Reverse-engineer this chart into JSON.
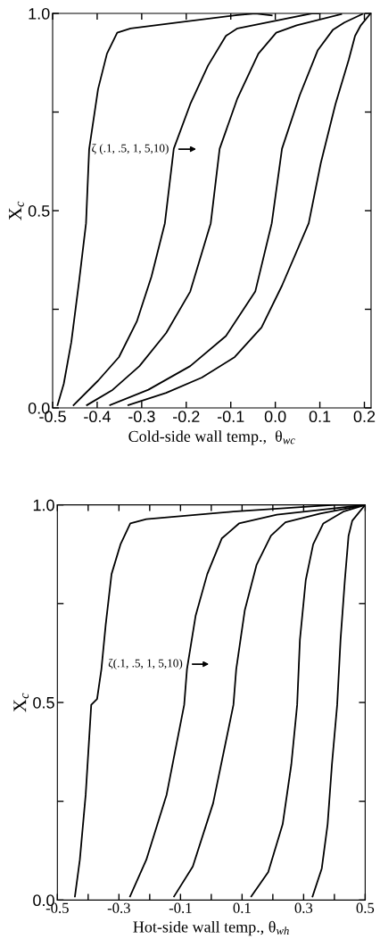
{
  "chart_data": [
    {
      "type": "line",
      "xlabel": "Cold-side wall temp.,  θ$_{wc}$",
      "ylabel": "X$_{c}$",
      "annotations": [
        "ζ (.1, .5, 1, 5,10)"
      ],
      "xlim": [
        -0.5,
        0.215
      ],
      "ylim": [
        0,
        1
      ],
      "xticks": [
        -0.5,
        -0.4,
        -0.3,
        -0.2,
        -0.1,
        {
          "value": 0.0,
          "label": "0.0"
        },
        0.1,
        0.2
      ],
      "yticks": [
        {
          "value": 0.0,
          "label": "0.0"
        },
        {
          "value": 0.25,
          "label": null
        },
        0.5,
        {
          "value": 0.75,
          "label": null
        },
        {
          "value": 1.0,
          "label": "1.0"
        }
      ],
      "grid": false,
      "marker": "none",
      "line_style": "solid",
      "series": [
        {
          "color": "#000000",
          "x": [
            -0.489,
            -0.475,
            -0.458,
            -0.441,
            -0.425,
            -0.418,
            -0.398,
            -0.378,
            -0.355,
            -0.325,
            -0.218,
            -0.085,
            -0.045,
            -0.008
          ],
          "values": [
            0.007,
            0.061,
            0.167,
            0.317,
            0.468,
            0.656,
            0.808,
            0.898,
            0.951,
            0.962,
            0.977,
            0.996,
            1.0,
            0.995
          ]
        },
        {
          "color": "#000000",
          "x": [
            -0.453,
            -0.398,
            -0.351,
            -0.311,
            -0.278,
            -0.248,
            -0.228,
            -0.191,
            -0.151,
            -0.111,
            -0.085,
            -0.018,
            0.082,
            0.1
          ],
          "values": [
            0.007,
            0.069,
            0.129,
            0.219,
            0.333,
            0.468,
            0.657,
            0.77,
            0.868,
            0.943,
            0.962,
            0.977,
            1.0,
            1.0
          ]
        },
        {
          "color": "#000000",
          "x": [
            -0.423,
            -0.365,
            -0.305,
            -0.245,
            -0.191,
            -0.145,
            -0.125,
            -0.085,
            -0.038,
            0.002,
            0.048,
            0.148
          ],
          "values": [
            0.007,
            0.046,
            0.106,
            0.19,
            0.295,
            0.468,
            0.657,
            0.785,
            0.898,
            0.951,
            0.97,
            0.998
          ]
        },
        {
          "color": "#000000",
          "x": [
            -0.371,
            -0.285,
            -0.191,
            -0.111,
            -0.045,
            -0.008,
            0.015,
            0.055,
            0.095,
            0.129,
            0.155,
            0.195
          ],
          "values": [
            0.007,
            0.046,
            0.106,
            0.182,
            0.295,
            0.468,
            0.657,
            0.793,
            0.906,
            0.958,
            0.977,
            0.998
          ]
        },
        {
          "color": "#000000",
          "x": [
            -0.33,
            -0.245,
            -0.165,
            -0.091,
            -0.031,
            0.015,
            0.075,
            0.102,
            0.135,
            0.165,
            0.179,
            0.192,
            0.214
          ],
          "values": [
            0.007,
            0.038,
            0.077,
            0.129,
            0.204,
            0.31,
            0.468,
            0.62,
            0.77,
            0.883,
            0.943,
            0.97,
            1.0
          ]
        }
      ]
    },
    {
      "type": "line",
      "xlabel": "Hot-side wall temp., θ$_{wh}$",
      "ylabel": "X$_{c}$",
      "annotations": [
        "ζ(.1, .5, 1, 5,10)"
      ],
      "xlim": [
        -0.5,
        0.5
      ],
      "ylim": [
        0,
        1
      ],
      "xticks": [
        -0.5,
        {
          "value": -0.4,
          "label": null
        },
        -0.3,
        {
          "value": -0.2,
          "label": null
        },
        -0.1,
        {
          "value": 0.0,
          "label": null
        },
        0.1,
        {
          "value": 0.2,
          "label": null
        },
        0.3,
        {
          "value": 0.4,
          "label": null
        },
        0.5
      ],
      "yticks": [
        {
          "value": 0.0,
          "label": "0.0"
        },
        {
          "value": 0.25,
          "label": null
        },
        0.5,
        {
          "value": 0.75,
          "label": null
        },
        {
          "value": 1.0,
          "label": "1.0"
        }
      ],
      "grid": false,
      "marker": "none",
      "line_style": "solid",
      "series": [
        {
          "color": "#000000",
          "x": [
            -0.443,
            -0.427,
            -0.408,
            -0.39,
            -0.371,
            -0.357,
            -0.343,
            -0.324,
            -0.295,
            -0.263,
            -0.211,
            0.072,
            0.401,
            0.5
          ],
          "values": [
            0.009,
            0.102,
            0.267,
            0.494,
            0.509,
            0.584,
            0.697,
            0.825,
            0.9,
            0.953,
            0.964,
            0.983,
            1.0,
            1.0
          ]
        },
        {
          "color": "#000000",
          "x": [
            -0.264,
            -0.211,
            -0.145,
            -0.088,
            -0.079,
            -0.051,
            -0.013,
            0.034,
            0.09,
            0.213,
            0.5
          ],
          "values": [
            0.009,
            0.102,
            0.267,
            0.494,
            0.584,
            0.719,
            0.825,
            0.915,
            0.953,
            0.975,
            1.0
          ]
        },
        {
          "color": "#000000",
          "x": [
            -0.121,
            -0.06,
            0.006,
            0.072,
            0.081,
            0.109,
            0.147,
            0.194,
            0.241,
            0.354,
            0.5
          ],
          "values": [
            0.009,
            0.085,
            0.245,
            0.494,
            0.584,
            0.734,
            0.848,
            0.922,
            0.956,
            0.978,
            1.0
          ]
        },
        {
          "color": "#000000",
          "x": [
            0.13,
            0.185,
            0.232,
            0.26,
            0.279,
            0.288,
            0.307,
            0.331,
            0.364,
            0.429,
            0.5
          ],
          "values": [
            0.009,
            0.071,
            0.192,
            0.343,
            0.494,
            0.659,
            0.81,
            0.9,
            0.953,
            0.983,
            1.0
          ]
        },
        {
          "color": "#000000",
          "x": [
            0.329,
            0.359,
            0.378,
            0.392,
            0.409,
            0.42,
            0.434,
            0.446,
            0.458,
            0.5
          ],
          "values": [
            0.009,
            0.08,
            0.192,
            0.343,
            0.494,
            0.659,
            0.81,
            0.922,
            0.96,
            1.0
          ]
        }
      ]
    }
  ]
}
